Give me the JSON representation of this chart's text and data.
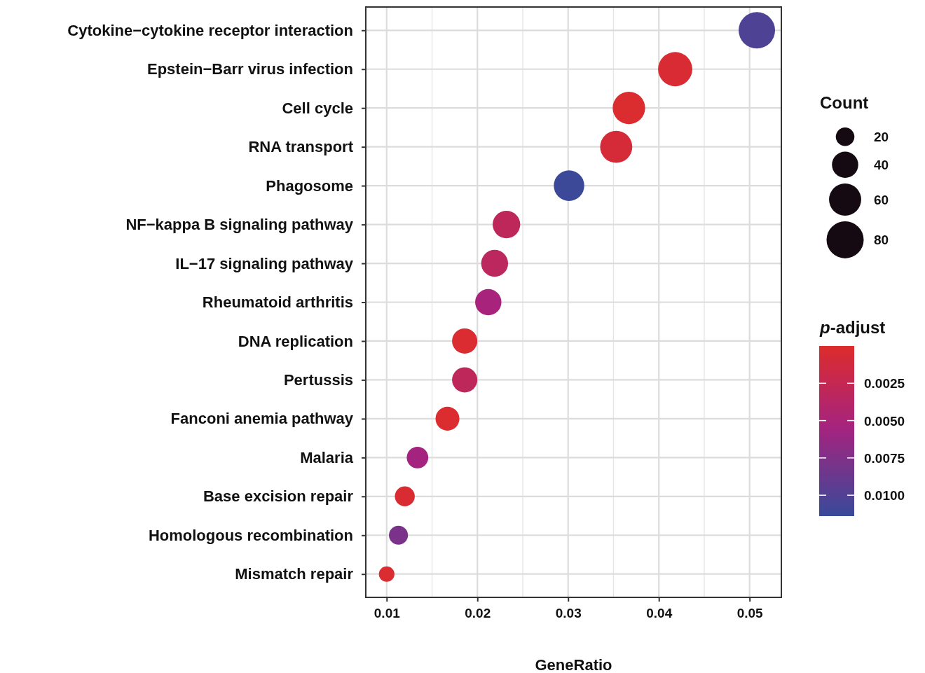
{
  "chart_data": {
    "type": "bubble",
    "orientation": "horizontal",
    "xlabel": "GeneRatio",
    "legend_title": "Count",
    "clabel": "p-adjust",
    "categories": [
      "Cytokine−cytokine receptor interaction",
      "Epstein−Barr virus infection",
      "Cell cycle",
      "RNA transport",
      "Phagosome",
      "NF−kappa B signaling pathway",
      "IL−17 signaling pathway",
      "Rheumatoid arthritis",
      "DNA replication",
      "Pertussis",
      "Fanconi anemia pathway",
      "Malaria",
      "Base excision repair",
      "Homologous recombination",
      "Mismatch repair"
    ],
    "values": [
      0.0508,
      0.0418,
      0.0367,
      0.0353,
      0.0301,
      0.0232,
      0.0219,
      0.0212,
      0.0186,
      0.0186,
      0.0167,
      0.0134,
      0.012,
      0.0113,
      0.01
    ],
    "sizes": [
      77,
      68,
      61,
      60,
      54,
      44,
      42,
      40,
      37,
      37,
      33,
      27,
      23,
      21,
      14
    ],
    "size_legend": [
      20,
      40,
      60,
      80
    ],
    "cvalues": [
      0.0102,
      0.0005,
      0.0002,
      0.0008,
      0.0112,
      0.003,
      0.0032,
      0.0052,
      0.0003,
      0.003,
      0.0002,
      0.0055,
      0.0004,
      0.0078,
      0.0003
    ],
    "clim": [
      0.0,
      0.0114
    ],
    "cticks": [
      {
        "value": 0.0025,
        "label": "0.0025"
      },
      {
        "value": 0.005,
        "label": "0.0050"
      },
      {
        "value": 0.0075,
        "label": "0.0075"
      },
      {
        "value": 0.01,
        "label": "0.0100"
      }
    ],
    "xlim": [
      0.0077,
      0.0535
    ],
    "xticks": [
      0.01,
      0.02,
      0.03,
      0.04,
      0.05
    ],
    "grid": true
  }
}
